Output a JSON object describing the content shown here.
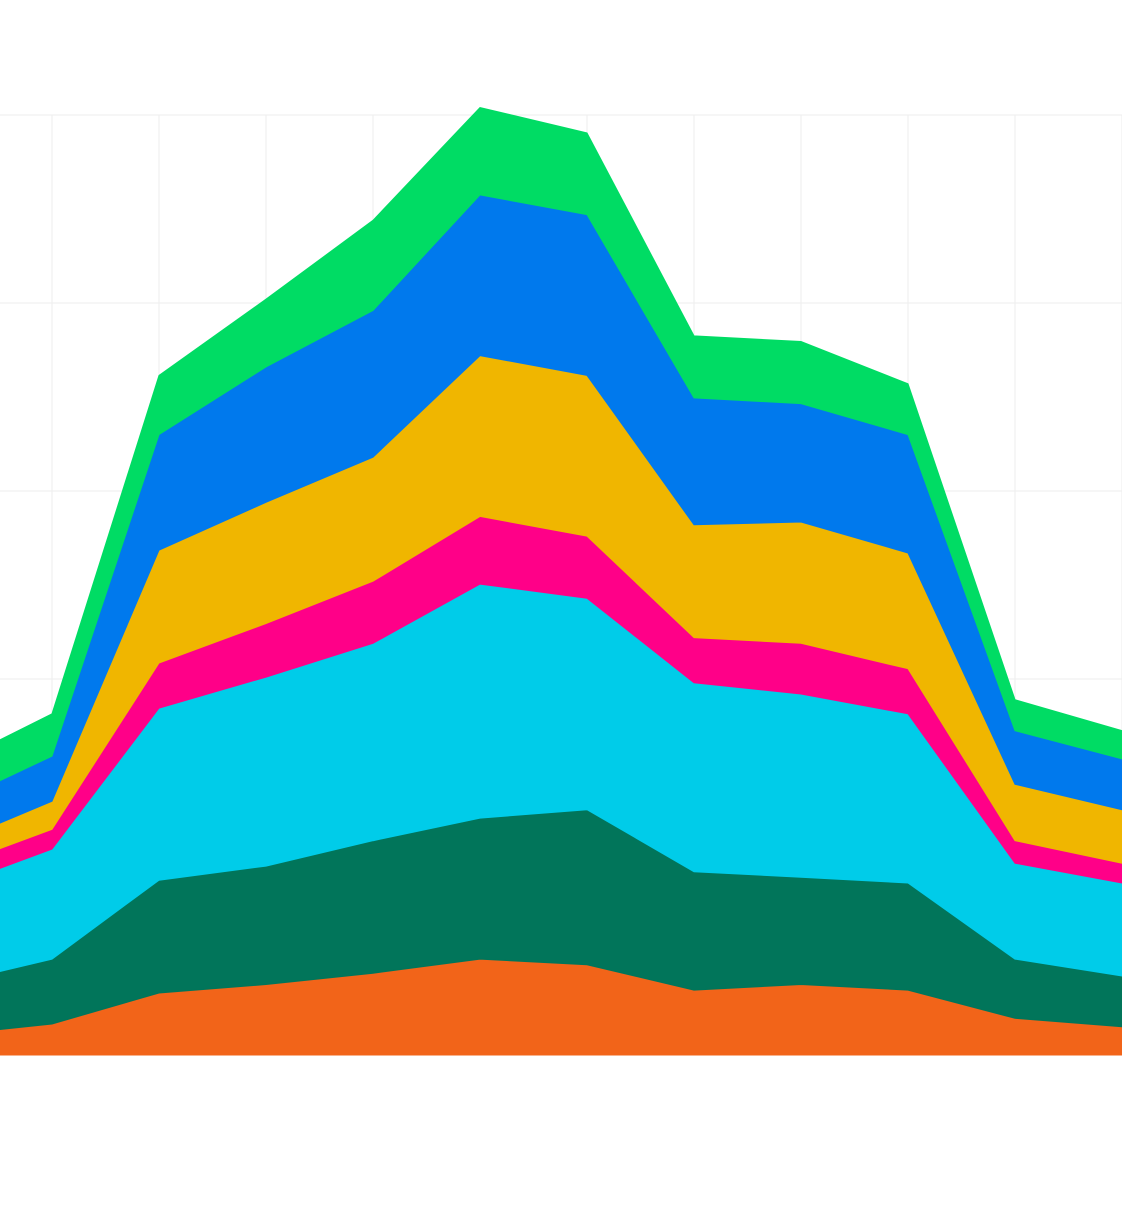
{
  "chart_data": {
    "type": "area",
    "stacked": true,
    "title": "",
    "xlabel": "",
    "ylabel": "",
    "x": [
      0,
      1,
      2,
      3,
      4,
      5,
      6,
      7,
      8,
      9,
      10,
      11
    ],
    "xlim": [
      0,
      11
    ],
    "ylim": [
      0,
      100
    ],
    "grid": true,
    "legend": "none",
    "series": [
      {
        "color": "#F26419",
        "values": [
          2.1,
          3.3,
          6.6,
          7.5,
          8.7,
          10.2,
          9.6,
          6.9,
          7.5,
          6.9,
          3.9,
          3.0
        ]
      },
      {
        "color": "#01755A",
        "values": [
          5.4,
          6.9,
          12.0,
          12.6,
          14.1,
          15.0,
          16.5,
          12.6,
          11.4,
          11.4,
          6.3,
          5.4
        ]
      },
      {
        "color": "#00CCE9",
        "values": [
          10.2,
          11.7,
          18.3,
          20.1,
          21.0,
          24.9,
          22.5,
          20.1,
          19.5,
          18.0,
          10.2,
          9.9
        ]
      },
      {
        "color": "#FF0088",
        "values": [
          2.1,
          2.1,
          4.8,
          5.7,
          6.6,
          7.2,
          6.6,
          4.8,
          5.4,
          4.8,
          2.4,
          2.1
        ]
      },
      {
        "color": "#F0B600",
        "values": [
          2.4,
          3.0,
          12.0,
          12.9,
          13.2,
          17.1,
          17.1,
          12.0,
          12.9,
          12.3,
          6.0,
          5.7
        ]
      },
      {
        "color": "#0079ED",
        "values": [
          4.2,
          4.8,
          12.3,
          14.4,
          15.6,
          17.1,
          17.1,
          13.5,
          12.6,
          12.6,
          5.7,
          5.4
        ]
      },
      {
        "color": "#00DC64",
        "values": [
          4.2,
          4.5,
          6.3,
          7.2,
          9.6,
          9.3,
          8.7,
          6.6,
          6.6,
          5.4,
          3.3,
          3.0
        ]
      }
    ]
  }
}
